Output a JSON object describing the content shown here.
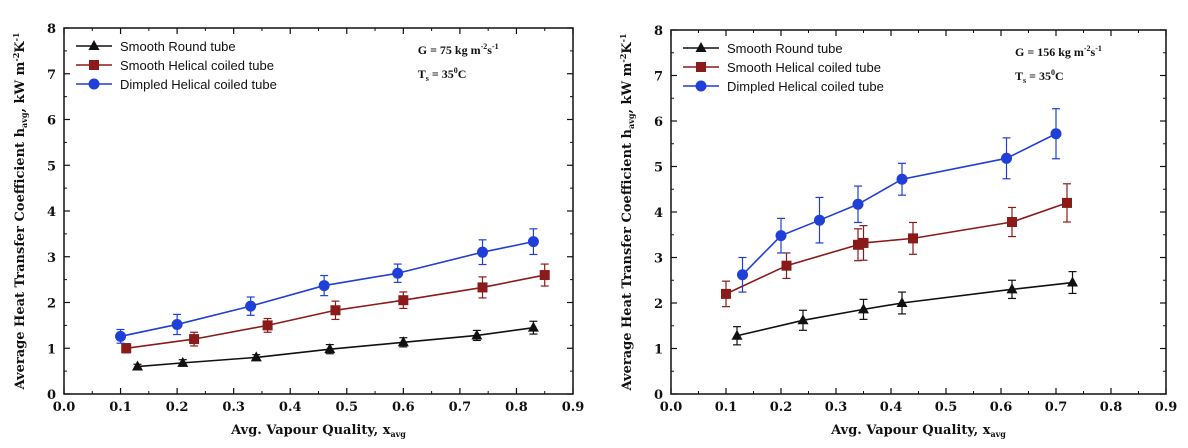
{
  "colors": {
    "round": "#111111",
    "smooth_helical": "#8b1a1a",
    "dimpled_helical": "#1f3fd6"
  },
  "chart_data": [
    {
      "type": "line",
      "title": "",
      "xlabel": "Avg. Vapour Quality, x",
      "xlabel_sub": "avg",
      "ylabel_parts": [
        "Average Heat Transfer Coefficient h",
        "avg",
        ", kW m",
        "-2",
        "K",
        "-1"
      ],
      "xlim": [
        0.0,
        0.9
      ],
      "ylim": [
        0,
        8
      ],
      "xticks": [
        "0.0",
        "0.1",
        "0.2",
        "0.3",
        "0.4",
        "0.5",
        "0.6",
        "0.7",
        "0.8",
        "0.9"
      ],
      "yticks": [
        "0",
        "1",
        "2",
        "3",
        "4",
        "5",
        "6",
        "7",
        "8"
      ],
      "annotation": {
        "g_text": "G = 75 kg m",
        "g_sup1": "-2",
        "g_mid": "s",
        "g_sup2": "-1",
        "ts_text": "T",
        "ts_sub": "s",
        "ts_eq": " = 35",
        "ts_sup": "0",
        "ts_unit": "C"
      },
      "legend_position": "top-left",
      "series": [
        {
          "name": "Smooth Round tube",
          "marker": "triangle",
          "color_key": "round",
          "x": [
            0.13,
            0.21,
            0.34,
            0.47,
            0.6,
            0.73,
            0.83
          ],
          "y": [
            0.6,
            0.68,
            0.8,
            0.98,
            1.13,
            1.28,
            1.45
          ],
          "err": [
            0.05,
            0.07,
            0.06,
            0.1,
            0.1,
            0.11,
            0.14
          ]
        },
        {
          "name": "Smooth Helical coiled tube",
          "marker": "square",
          "color_key": "smooth_helical",
          "x": [
            0.11,
            0.23,
            0.36,
            0.48,
            0.6,
            0.74,
            0.85
          ],
          "y": [
            1.0,
            1.2,
            1.5,
            1.83,
            2.05,
            2.33,
            2.6
          ],
          "err": [
            0.1,
            0.15,
            0.15,
            0.2,
            0.18,
            0.23,
            0.24
          ]
        },
        {
          "name": "Dimpled Helical coiled tube",
          "marker": "circle",
          "color_key": "dimpled_helical",
          "x": [
            0.1,
            0.2,
            0.33,
            0.46,
            0.59,
            0.74,
            0.83
          ],
          "y": [
            1.26,
            1.52,
            1.92,
            2.37,
            2.64,
            3.1,
            3.33
          ],
          "err": [
            0.15,
            0.22,
            0.2,
            0.22,
            0.2,
            0.27,
            0.28
          ]
        }
      ]
    },
    {
      "type": "line",
      "title": "",
      "xlabel": "Avg. Vapour Quality, x",
      "xlabel_sub": "avg",
      "ylabel_parts": [
        "Average Heat Transfer Coefficient h",
        "avg",
        ", kW m",
        "-2",
        "K",
        "-1"
      ],
      "xlim": [
        0.0,
        0.9
      ],
      "ylim": [
        0,
        8
      ],
      "xticks": [
        "0.0",
        "0.1",
        "0.2",
        "0.3",
        "0.4",
        "0.5",
        "0.6",
        "0.7",
        "0.8",
        "0.9"
      ],
      "yticks": [
        "0",
        "1",
        "2",
        "3",
        "4",
        "5",
        "6",
        "7",
        "8"
      ],
      "annotation": {
        "g_text": "G = 156 kg m",
        "g_sup1": "-2",
        "g_mid": "s",
        "g_sup2": "-1",
        "ts_text": "T",
        "ts_sub": "s",
        "ts_eq": " = 35",
        "ts_sup": "0",
        "ts_unit": "C"
      },
      "legend_position": "top-left",
      "series": [
        {
          "name": "Smooth Round tube",
          "marker": "triangle",
          "color_key": "round",
          "x": [
            0.12,
            0.24,
            0.35,
            0.42,
            0.62,
            0.73
          ],
          "y": [
            1.28,
            1.62,
            1.86,
            2.0,
            2.3,
            2.45
          ],
          "err": [
            0.2,
            0.22,
            0.22,
            0.24,
            0.2,
            0.24
          ]
        },
        {
          "name": "Smooth Helical coiled tube",
          "marker": "square",
          "color_key": "smooth_helical",
          "x": [
            0.1,
            0.21,
            0.34,
            0.35,
            0.44,
            0.62,
            0.72
          ],
          "y": [
            2.2,
            2.82,
            3.28,
            3.32,
            3.42,
            3.78,
            4.2
          ],
          "err": [
            0.28,
            0.28,
            0.35,
            0.38,
            0.35,
            0.32,
            0.42
          ]
        },
        {
          "name": "Dimpled Helical coiled tube",
          "marker": "circle",
          "color_key": "dimpled_helical",
          "x": [
            0.13,
            0.2,
            0.27,
            0.34,
            0.42,
            0.61,
            0.7
          ],
          "y": [
            2.62,
            3.48,
            3.82,
            4.17,
            4.72,
            5.18,
            5.72
          ],
          "err": [
            0.38,
            0.38,
            0.5,
            0.4,
            0.35,
            0.45,
            0.55
          ]
        }
      ]
    }
  ]
}
